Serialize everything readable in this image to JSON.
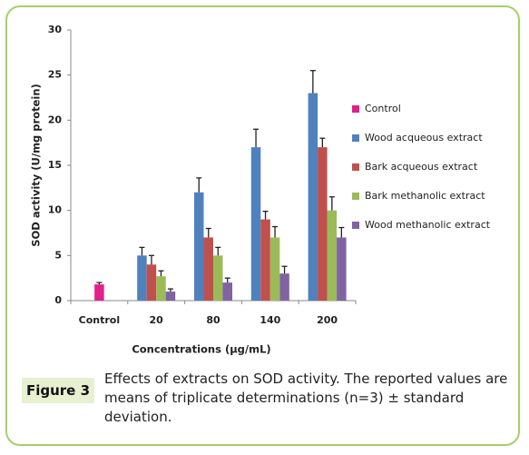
{
  "figure": {
    "label": "Figure 3",
    "caption": "Effects of extracts on SOD activity. The reported values are means of triplicate determinations (n=3) ± standard deviation."
  },
  "chart_data": {
    "type": "bar",
    "y_label": "SOD activity (U/mg protein)",
    "x_label": "Concentrations (µg/mL)",
    "categories": [
      "Control",
      "20",
      "80",
      "140",
      "200"
    ],
    "ylim": [
      0,
      30
    ],
    "yticks": [
      0,
      5,
      10,
      15,
      20,
      25,
      30
    ],
    "legend": "right",
    "series": [
      {
        "name": "Control",
        "color": "#e0218a",
        "values": [
          1.8,
          null,
          null,
          null,
          null
        ],
        "errors": [
          0.2,
          null,
          null,
          null,
          null
        ]
      },
      {
        "name": "Wood acqueous extract",
        "color": "#4f81bd",
        "values": [
          null,
          5,
          12,
          17,
          23
        ],
        "errors": [
          null,
          0.9,
          1.6,
          2,
          2.5
        ]
      },
      {
        "name": "Bark acqueous extract",
        "color": "#c0504d",
        "values": [
          null,
          4,
          7,
          9,
          17
        ],
        "errors": [
          null,
          1,
          1,
          0.9,
          1
        ]
      },
      {
        "name": "Bark methanolic extract",
        "color": "#9bbb59",
        "values": [
          null,
          2.7,
          5,
          7,
          10
        ],
        "errors": [
          null,
          0.6,
          0.9,
          1.2,
          1.5
        ]
      },
      {
        "name": "Wood methanolic extract",
        "color": "#8064a2",
        "values": [
          null,
          1,
          2,
          3,
          7
        ],
        "errors": [
          null,
          0.3,
          0.5,
          0.8,
          1.1
        ]
      }
    ]
  }
}
